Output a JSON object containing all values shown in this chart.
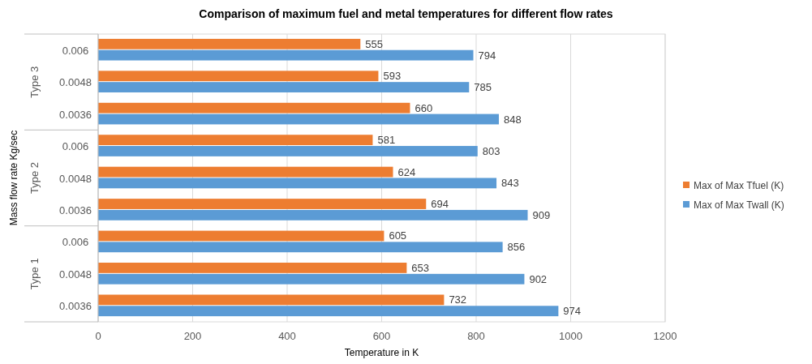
{
  "chart_data": {
    "type": "bar",
    "orientation": "horizontal",
    "title": "Comparison of maximum fuel and metal temperatures for different flow rates",
    "xlabel": "Temperature in K",
    "ylabel": "Mass flow rate Kg/sec",
    "categories": [
      "0.006",
      "0.0048",
      "0.0036",
      "0.006",
      "0.0048",
      "0.0036",
      "0.006",
      "0.0048",
      "0.0036"
    ],
    "annotations": [
      "Type 3",
      "Type 2",
      "Type 1"
    ],
    "series": [
      {
        "name": "Max of Max Tfuel (K)",
        "color": "#ed7d31",
        "values": [
          555,
          593,
          660,
          581,
          624,
          694,
          605,
          653,
          732
        ]
      },
      {
        "name": "Max of Max Twall (K)",
        "color": "#5b9bd5",
        "values": [
          794,
          785,
          848,
          803,
          843,
          909,
          856,
          902,
          974
        ]
      }
    ],
    "xlim": [
      0,
      1200
    ],
    "xticks": [
      0,
      200,
      400,
      600,
      800,
      1000,
      1200
    ],
    "grid": "x",
    "data_labels": true,
    "legend": "right"
  }
}
